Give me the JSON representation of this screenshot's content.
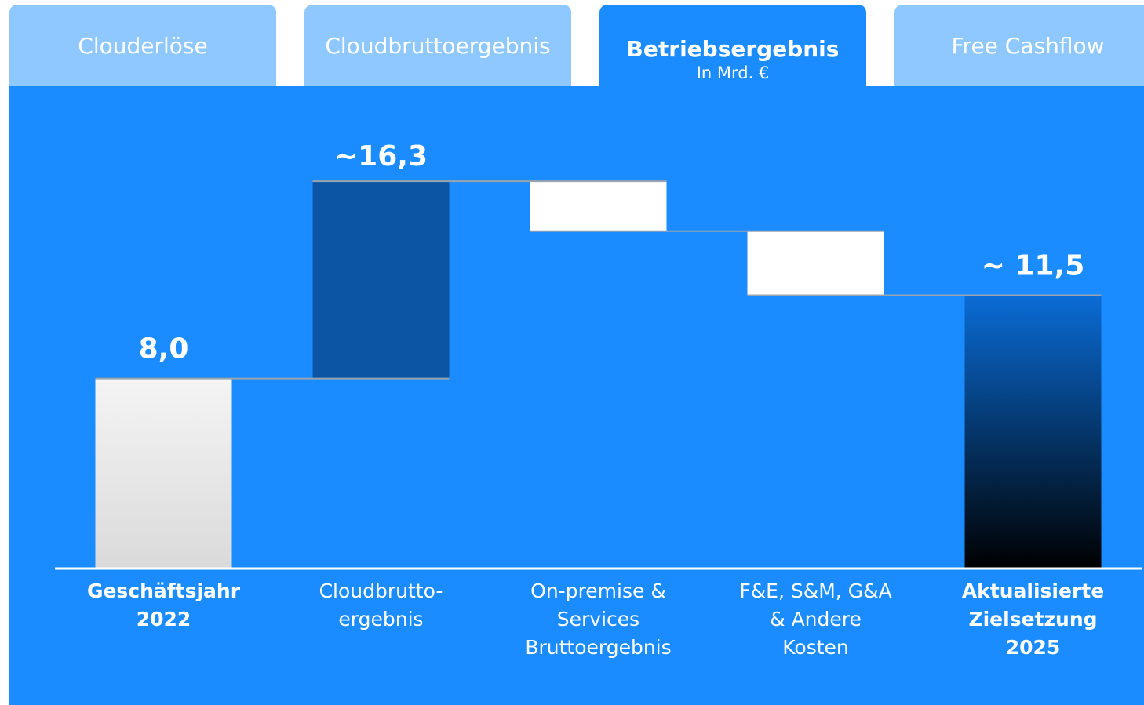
{
  "tabs": [
    {
      "label": "Clouderlöse"
    },
    {
      "label": "Cloudbruttoergebnis"
    },
    {
      "label": "Betriebsergebnis",
      "subtitle": "In Mrd. €",
      "active": true
    },
    {
      "label": "Free Cashflow"
    }
  ],
  "chart_data": {
    "type": "waterfall",
    "categories": [
      "Geschäftsjahr\n2022",
      "Cloudbrutto-\nergebnis",
      "On-premise &\nServices\nBruttoergebnis",
      "F&E, S&M, G&A\n& Andere\nKosten",
      "Aktualisierte\nZielsetzung\n2025"
    ],
    "kinds": [
      "total",
      "delta",
      "delta",
      "delta",
      "total"
    ],
    "values": [
      8.0,
      8.3,
      -2.1,
      -2.7,
      11.5
    ],
    "value_labels": [
      "8,0",
      null,
      null,
      null,
      "~ 11,5"
    ],
    "annotations": [
      {
        "text": "~16,3",
        "value": 16.3,
        "category": "Cloudbrutto-\nergebnis"
      }
    ],
    "colors": [
      [
        "#f4f4f4",
        "#dadada"
      ],
      [
        "#0b55a4",
        "#0b55a4"
      ],
      [
        "#ffffff",
        "#ffffff"
      ],
      [
        "#ffffff",
        "#ffffff"
      ],
      [
        "#0a6cd6",
        "#000000"
      ]
    ],
    "ylim": [
      0,
      20
    ]
  }
}
